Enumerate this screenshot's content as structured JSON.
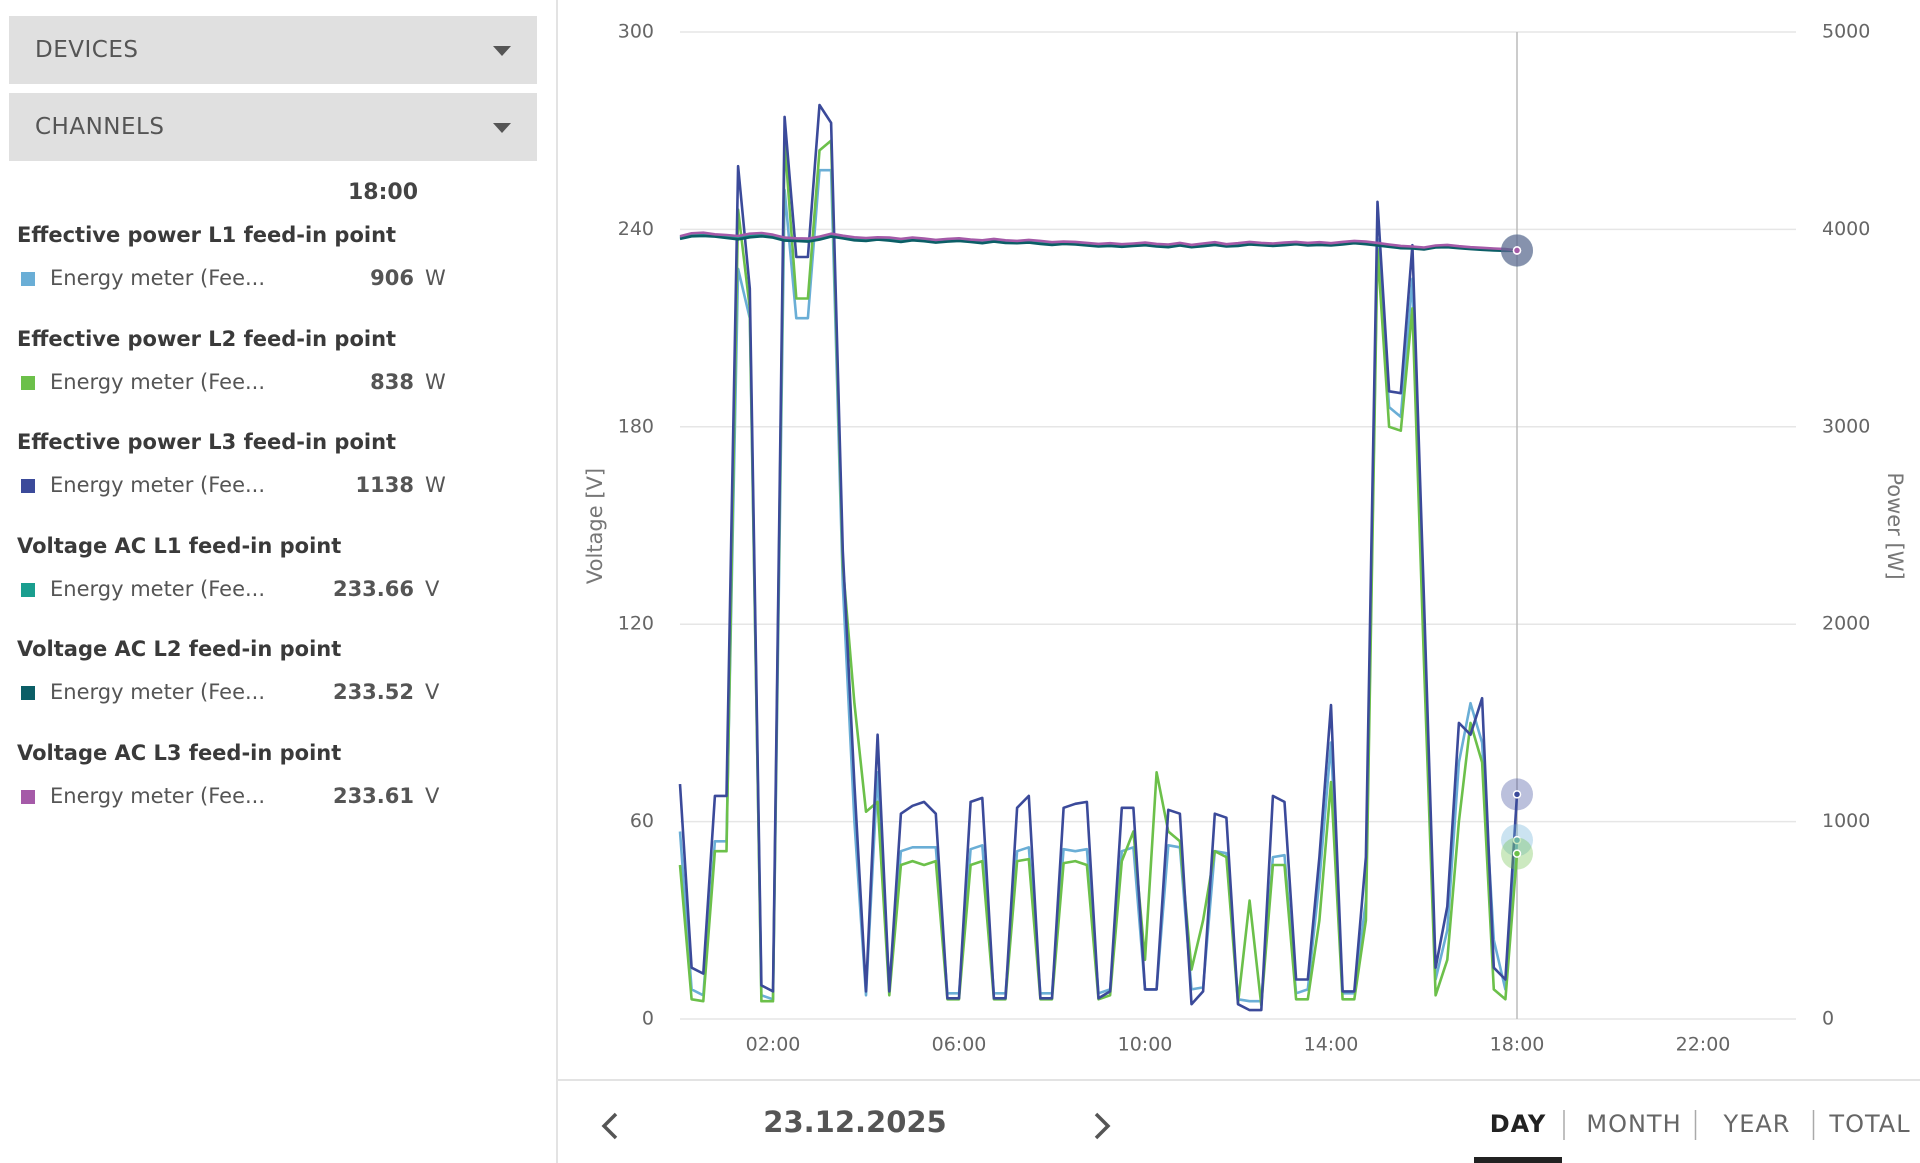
{
  "menu": {
    "devices": "DEVICES",
    "channels": "CHANNELS"
  },
  "sidebar": {
    "time": "18:00"
  },
  "chart_data": {
    "type": "line",
    "y_label": "Voltage [V]",
    "y2_label": "Power [W]",
    "xlim": [
      0,
      24
    ],
    "xticks": [
      {
        "value": 2,
        "label": "02:00"
      },
      {
        "value": 6,
        "label": "06:00"
      },
      {
        "value": 10,
        "label": "10:00"
      },
      {
        "value": 14,
        "label": "14:00"
      },
      {
        "value": 18,
        "label": "18:00"
      },
      {
        "value": 22,
        "label": "22:00"
      }
    ],
    "ylim": [
      0,
      300
    ],
    "yticks": [
      0,
      60,
      120,
      180,
      240,
      300
    ],
    "y2lim": [
      0,
      5000
    ],
    "y2ticks": [
      0,
      1000,
      2000,
      3000,
      4000,
      5000
    ],
    "grid": true,
    "x": [
      0,
      0.25,
      0.5,
      0.75,
      1,
      1.25,
      1.5,
      1.75,
      2,
      2.25,
      2.5,
      2.75,
      3,
      3.25,
      3.5,
      3.75,
      4,
      4.25,
      4.5,
      4.75,
      5,
      5.25,
      5.5,
      5.75,
      6,
      6.25,
      6.5,
      6.75,
      7,
      7.25,
      7.5,
      7.75,
      8,
      8.25,
      8.5,
      8.75,
      9,
      9.25,
      9.5,
      9.75,
      10,
      10.25,
      10.5,
      10.75,
      11,
      11.25,
      11.5,
      11.75,
      12,
      12.25,
      12.5,
      12.75,
      13,
      13.25,
      13.5,
      13.75,
      14,
      14.25,
      14.5,
      14.75,
      15,
      15.25,
      15.5,
      15.75,
      16,
      16.25,
      16.5,
      16.75,
      17,
      17.25,
      17.5,
      17.75,
      18
    ],
    "series": [
      {
        "name": "Effective power L1 feed-in point",
        "device": "Energy meter (Fee...",
        "unit": "W",
        "color": "#6aaed6",
        "axis": "y2",
        "values": [
          950,
          150,
          120,
          900,
          900,
          3800,
          3550,
          120,
          100,
          4200,
          3550,
          3550,
          4300,
          4300,
          2200,
          1000,
          120,
          1250,
          150,
          850,
          870,
          870,
          870,
          130,
          130,
          860,
          880,
          130,
          130,
          850,
          870,
          130,
          130,
          860,
          850,
          860,
          130,
          150,
          850,
          870,
          150,
          150,
          880,
          870,
          150,
          160,
          850,
          840,
          100,
          90,
          90,
          820,
          830,
          130,
          150,
          700,
          1400,
          130,
          130,
          600,
          3950,
          3100,
          3050,
          3750,
          1900,
          200,
          450,
          1300,
          1600,
          1400,
          400,
          150,
          906
        ]
      },
      {
        "name": "Effective power L2 feed-in point",
        "device": "Energy meter (Fee...",
        "unit": "W",
        "color": "#6cc04a",
        "axis": "y2",
        "values": [
          780,
          100,
          90,
          850,
          850,
          4100,
          3600,
          90,
          90,
          4450,
          3650,
          3650,
          4400,
          4450,
          2300,
          1600,
          1050,
          1100,
          120,
          780,
          800,
          780,
          800,
          100,
          100,
          780,
          800,
          100,
          100,
          800,
          810,
          100,
          100,
          790,
          800,
          780,
          100,
          120,
          800,
          950,
          300,
          1250,
          950,
          900,
          250,
          500,
          850,
          820,
          80,
          600,
          70,
          780,
          780,
          100,
          100,
          500,
          1200,
          100,
          100,
          500,
          3900,
          3000,
          2980,
          3600,
          1800,
          120,
          300,
          1000,
          1500,
          1300,
          150,
          100,
          838
        ]
      },
      {
        "name": "Effective power L3 feed-in point",
        "device": "Energy meter (Fee...",
        "unit": "W",
        "color": "#3b4a9a",
        "axis": "y2",
        "values": [
          1190,
          260,
          230,
          1130,
          1130,
          4320,
          3700,
          170,
          140,
          4570,
          3860,
          3860,
          4630,
          4540,
          2370,
          1190,
          140,
          1440,
          140,
          1040,
          1080,
          1100,
          1040,
          105,
          105,
          1100,
          1120,
          105,
          105,
          1070,
          1130,
          105,
          105,
          1070,
          1090,
          1100,
          105,
          140,
          1070,
          1070,
          150,
          150,
          1060,
          1040,
          75,
          140,
          1040,
          1020,
          75,
          45,
          45,
          1130,
          1100,
          200,
          200,
          820,
          1590,
          140,
          140,
          820,
          4140,
          3180,
          3170,
          3920,
          2120,
          260,
          570,
          1500,
          1440,
          1625,
          260,
          200,
          1138
        ]
      },
      {
        "name": "Voltage AC L1 feed-in point",
        "device": "Energy meter (Fee...",
        "unit": "V",
        "color": "#1a9e8f",
        "axis": "y",
        "values": [
          237.5,
          238.4,
          238.6,
          238.2,
          238.0,
          237.6,
          238.3,
          238.5,
          238.1,
          237.2,
          237.0,
          236.8,
          237.5,
          238.4,
          237.8,
          237.2,
          237.0,
          237.3,
          237.1,
          236.8,
          237.2,
          236.9,
          236.5,
          236.7,
          237.0,
          236.6,
          236.3,
          236.8,
          236.4,
          236.2,
          236.5,
          236.1,
          235.8,
          236.0,
          235.9,
          235.6,
          235.3,
          235.5,
          235.2,
          235.4,
          235.7,
          235.3,
          235.1,
          235.6,
          235.0,
          235.4,
          235.8,
          235.2,
          235.5,
          235.9,
          235.6,
          235.4,
          235.7,
          235.9,
          235.6,
          235.8,
          235.5,
          235.9,
          236.2,
          236.0,
          235.6,
          235.2,
          234.8,
          234.6,
          234.3,
          234.9,
          235.1,
          234.7,
          234.4,
          234.2,
          234.0,
          233.8,
          233.66
        ]
      },
      {
        "name": "Voltage AC L2 feed-in point",
        "device": "Energy meter (Fee...",
        "unit": "V",
        "color": "#0b5e66",
        "axis": "y",
        "values": [
          237.1,
          237.9,
          238.0,
          237.8,
          237.4,
          237.0,
          237.6,
          237.9,
          237.5,
          236.6,
          236.5,
          236.3,
          236.9,
          237.8,
          237.3,
          236.7,
          236.5,
          236.9,
          236.6,
          236.2,
          236.7,
          236.4,
          236.0,
          236.3,
          236.5,
          236.2,
          235.8,
          236.3,
          235.9,
          235.8,
          236.0,
          235.6,
          235.3,
          235.6,
          235.4,
          235.1,
          234.8,
          235.0,
          234.7,
          235.0,
          235.2,
          234.8,
          234.6,
          235.1,
          234.6,
          234.9,
          235.3,
          234.8,
          235.0,
          235.4,
          235.2,
          235.0,
          235.2,
          235.5,
          235.1,
          235.3,
          235.1,
          235.4,
          235.8,
          235.5,
          235.1,
          234.7,
          234.3,
          234.2,
          233.9,
          234.5,
          234.6,
          234.3,
          234.0,
          233.8,
          233.6,
          233.5,
          233.52
        ]
      },
      {
        "name": "Voltage AC L3 feed-in point",
        "device": "Energy meter (Fee...",
        "unit": "V",
        "color": "#a55aa8",
        "axis": "y",
        "values": [
          237.9,
          238.8,
          239.0,
          238.5,
          238.3,
          238.0,
          238.7,
          238.9,
          238.4,
          237.5,
          237.3,
          237.2,
          237.8,
          238.7,
          238.1,
          237.6,
          237.4,
          237.6,
          237.5,
          237.1,
          237.5,
          237.2,
          236.8,
          237.1,
          237.3,
          236.9,
          236.7,
          237.1,
          236.7,
          236.5,
          236.8,
          236.5,
          236.1,
          236.3,
          236.2,
          235.9,
          235.6,
          235.8,
          235.5,
          235.7,
          236.0,
          235.6,
          235.4,
          235.9,
          235.3,
          235.7,
          236.1,
          235.5,
          235.8,
          236.2,
          235.9,
          235.7,
          236.0,
          236.2,
          235.9,
          236.1,
          235.8,
          236.2,
          236.5,
          236.3,
          235.9,
          235.4,
          235.0,
          234.8,
          234.5,
          235.1,
          235.3,
          234.9,
          234.6,
          234.4,
          234.2,
          234.0,
          233.61
        ]
      }
    ]
  },
  "footer": {
    "date": "23.12.2025",
    "tabs": [
      "DAY",
      "MONTH",
      "YEAR",
      "TOTAL"
    ],
    "active": 0
  }
}
